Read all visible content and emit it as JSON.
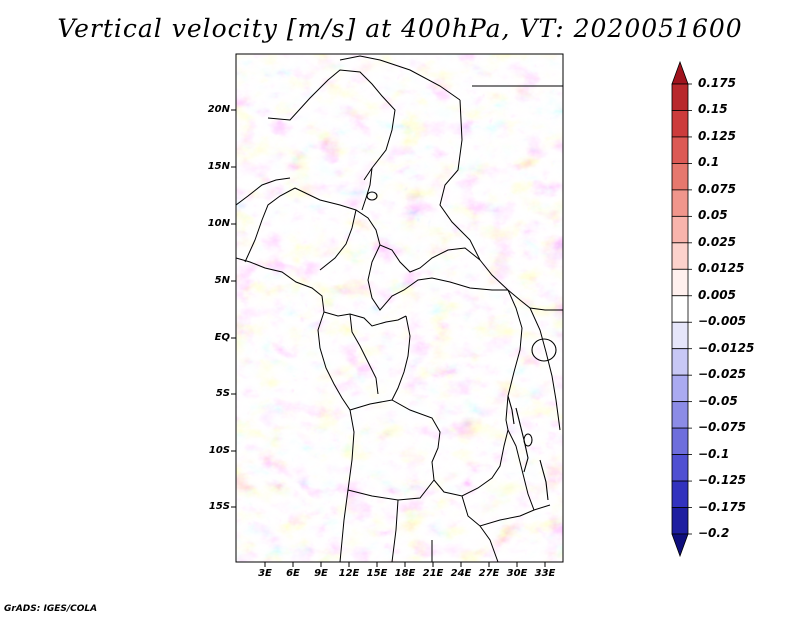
{
  "title": "Vertical velocity [m/s] at 400hPa, VT: 2020051600",
  "footer": "GrADS: IGES/COLA",
  "map": {
    "latitude_labels": [
      "20N",
      "15N",
      "10N",
      "5N",
      "EQ",
      "5S",
      "10S",
      "15S"
    ],
    "longitude_labels": [
      "3E",
      "6E",
      "9E",
      "12E",
      "15E",
      "18E",
      "21E",
      "24E",
      "27E",
      "30E",
      "33E"
    ]
  },
  "colorbar": {
    "levels": [
      "0.175",
      "0.15",
      "0.125",
      "0.1",
      "0.075",
      "0.05",
      "0.025",
      "0.0125",
      "0.005",
      "-0.005",
      "-0.0125",
      "-0.025",
      "-0.05",
      "-0.075",
      "-0.1",
      "-0.125",
      "-0.175",
      "-0.2"
    ],
    "colors": [
      "#a0141e",
      "#b8282c",
      "#cc3c3c",
      "#dc5a55",
      "#e6786e",
      "#f0968c",
      "#f8b4ac",
      "#fcd2cc",
      "#fff0ee",
      "#ffffff",
      "#e6e6fa",
      "#c8c8f5",
      "#aaaaf0",
      "#8c8ce6",
      "#6e6edc",
      "#5050d2",
      "#3232be",
      "#1e1ea0",
      "#0f0f7d"
    ]
  }
}
